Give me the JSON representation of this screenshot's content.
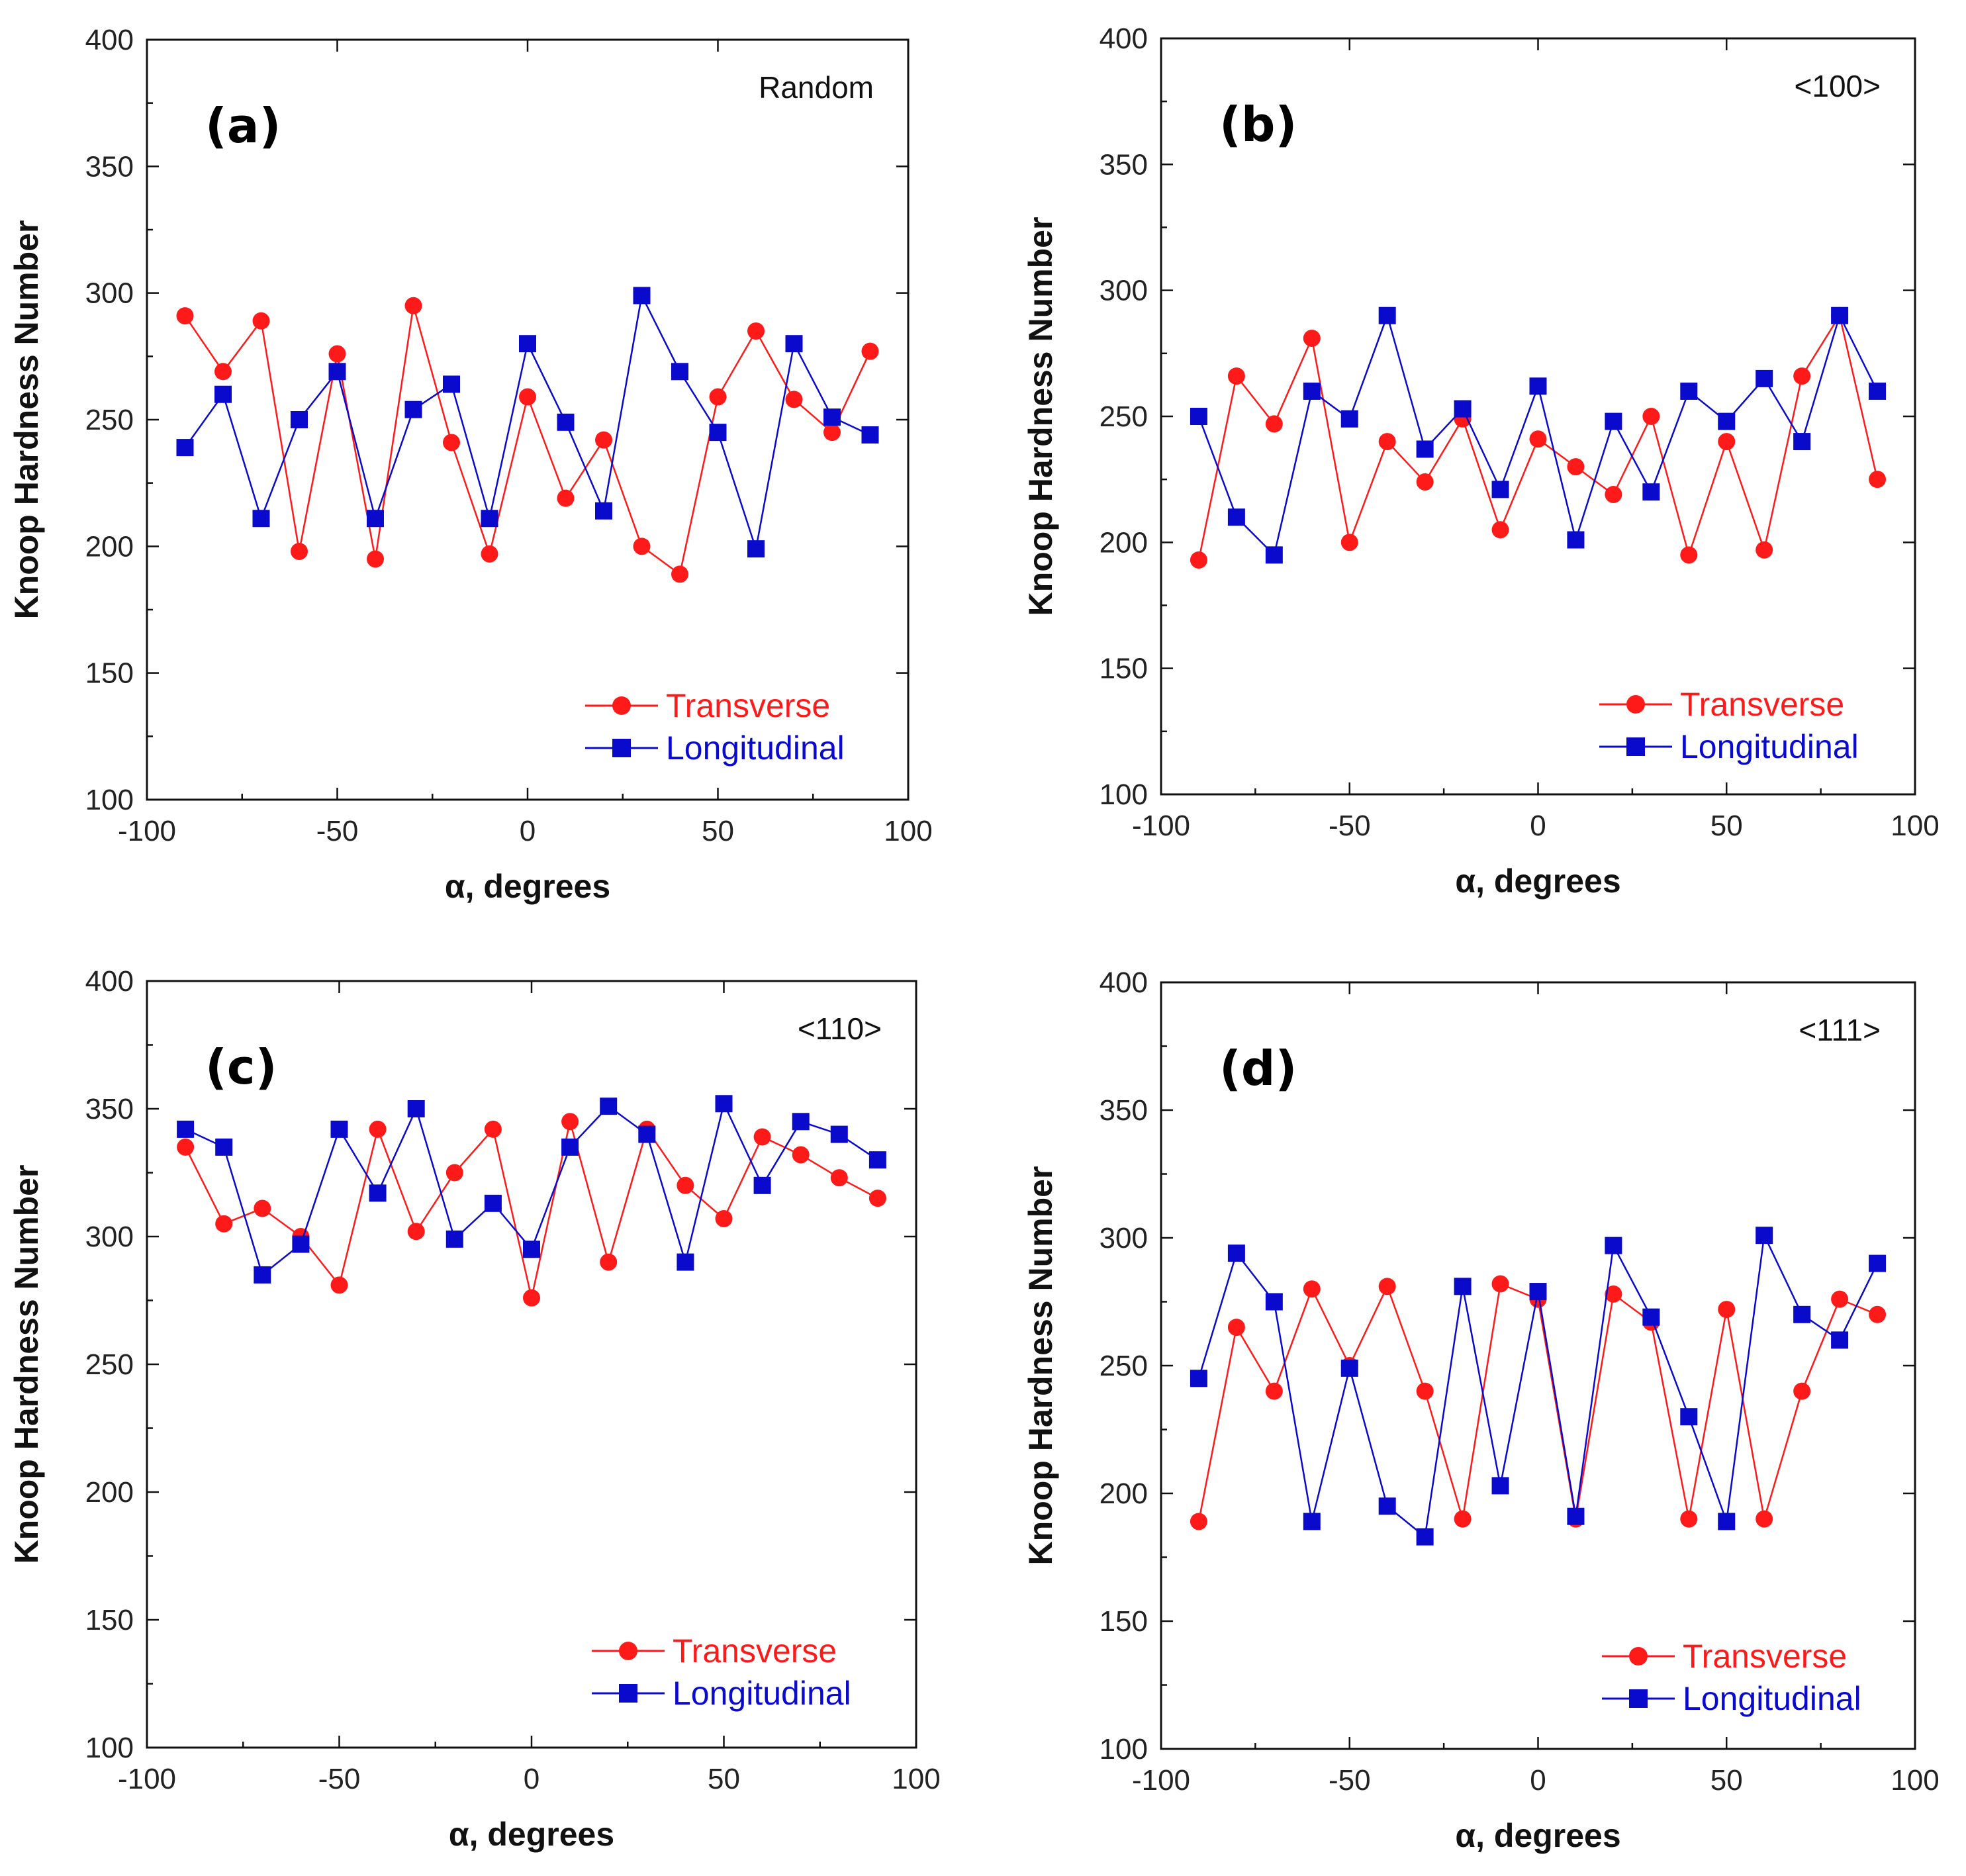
{
  "chart_data": [
    {
      "type": "line",
      "panel_label": "(a)",
      "annotation": "Random",
      "xlabel": "α, degrees",
      "ylabel": "Knoop Hardness Number",
      "xlim": [
        -100,
        100
      ],
      "ylim": [
        100,
        400
      ],
      "xticks": [
        "-100",
        "-50",
        "0",
        "50",
        "100"
      ],
      "yticks": [
        "100",
        "150",
        "200",
        "250",
        "300",
        "350",
        "400"
      ],
      "legend_position": "bottom-right",
      "x": [
        -90,
        -80,
        -70,
        -60,
        -50,
        -40,
        -30,
        -20,
        -10,
        0,
        10,
        20,
        30,
        40,
        50,
        60,
        70,
        80,
        90
      ],
      "series": [
        {
          "name": "Transverse",
          "color": "#ff1a1a",
          "marker": "circle",
          "values": [
            291,
            269,
            289,
            198,
            276,
            195,
            295,
            241,
            197,
            259,
            219,
            242,
            200,
            189,
            259,
            285,
            258,
            245,
            277
          ]
        },
        {
          "name": "Longitudinal",
          "color": "#0a0acd",
          "marker": "square",
          "values": [
            239,
            260,
            211,
            250,
            269,
            211,
            254,
            264,
            211,
            280,
            249,
            214,
            299,
            269,
            245,
            199,
            280,
            251,
            244
          ]
        }
      ]
    },
    {
      "type": "line",
      "panel_label": "(b)",
      "annotation": "<100>",
      "xlabel": "α, degrees",
      "ylabel": "Knoop Hardness Number",
      "xlim": [
        -100,
        100
      ],
      "ylim": [
        100,
        400
      ],
      "xticks": [
        "-100",
        "-50",
        "0",
        "50",
        "100"
      ],
      "yticks": [
        "100",
        "150",
        "200",
        "250",
        "300",
        "350",
        "400"
      ],
      "legend_position": "bottom-right",
      "x": [
        -90,
        -80,
        -70,
        -60,
        -50,
        -40,
        -30,
        -20,
        -10,
        0,
        10,
        20,
        30,
        40,
        50,
        60,
        70,
        80,
        90
      ],
      "series": [
        {
          "name": "Transverse",
          "color": "#ff1a1a",
          "marker": "circle",
          "values": [
            193,
            266,
            247,
            281,
            200,
            240,
            224,
            249,
            205,
            241,
            230,
            219,
            250,
            195,
            240,
            197,
            266,
            290,
            225
          ]
        },
        {
          "name": "Longitudinal",
          "color": "#0a0acd",
          "marker": "square",
          "values": [
            250,
            210,
            195,
            260,
            249,
            290,
            237,
            253,
            221,
            262,
            201,
            248,
            220,
            260,
            248,
            265,
            240,
            290,
            260
          ]
        }
      ]
    },
    {
      "type": "line",
      "panel_label": "(c)",
      "annotation": "<110>",
      "xlabel": "α, degrees",
      "ylabel": "Knoop Hardness Number",
      "xlim": [
        -100,
        100
      ],
      "ylim": [
        100,
        400
      ],
      "xticks": [
        "-100",
        "-50",
        "0",
        "50",
        "100"
      ],
      "yticks": [
        "100",
        "150",
        "200",
        "250",
        "300",
        "350",
        "400"
      ],
      "legend_position": "bottom-right",
      "x": [
        -90,
        -80,
        -70,
        -60,
        -50,
        -40,
        -30,
        -20,
        -10,
        0,
        10,
        20,
        30,
        40,
        50,
        60,
        70,
        80,
        90
      ],
      "series": [
        {
          "name": "Transverse",
          "color": "#ff1a1a",
          "marker": "circle",
          "values": [
            335,
            305,
            311,
            300,
            281,
            342,
            302,
            325,
            342,
            276,
            345,
            290,
            342,
            320,
            307,
            339,
            332,
            323,
            315
          ]
        },
        {
          "name": "Longitudinal",
          "color": "#0a0acd",
          "marker": "square",
          "values": [
            342,
            335,
            285,
            297,
            342,
            317,
            350,
            299,
            313,
            295,
            335,
            351,
            340,
            290,
            352,
            320,
            345,
            340,
            330
          ]
        }
      ]
    },
    {
      "type": "line",
      "panel_label": "(d)",
      "annotation": "<111>",
      "xlabel": "α, degrees",
      "ylabel": "Knoop Hardness Number",
      "xlim": [
        -100,
        100
      ],
      "ylim": [
        100,
        400
      ],
      "xticks": [
        "-100",
        "-50",
        "0",
        "50",
        "100"
      ],
      "yticks": [
        "100",
        "150",
        "200",
        "250",
        "300",
        "350",
        "400"
      ],
      "legend_position": "bottom-right",
      "x": [
        -90,
        -80,
        -70,
        -60,
        -50,
        -40,
        -30,
        -20,
        -10,
        0,
        10,
        20,
        30,
        40,
        50,
        60,
        70,
        80,
        90
      ],
      "series": [
        {
          "name": "Transverse",
          "color": "#ff1a1a",
          "marker": "circle",
          "values": [
            189,
            265,
            240,
            280,
            250,
            281,
            240,
            190,
            282,
            276,
            190,
            278,
            267,
            190,
            272,
            190,
            240,
            276,
            270
          ]
        },
        {
          "name": "Longitudinal",
          "color": "#0a0acd",
          "marker": "square",
          "values": [
            245,
            294,
            275,
            189,
            249,
            195,
            183,
            281,
            203,
            279,
            191,
            297,
            269,
            230,
            189,
            301,
            270,
            260,
            290
          ]
        }
      ]
    }
  ]
}
